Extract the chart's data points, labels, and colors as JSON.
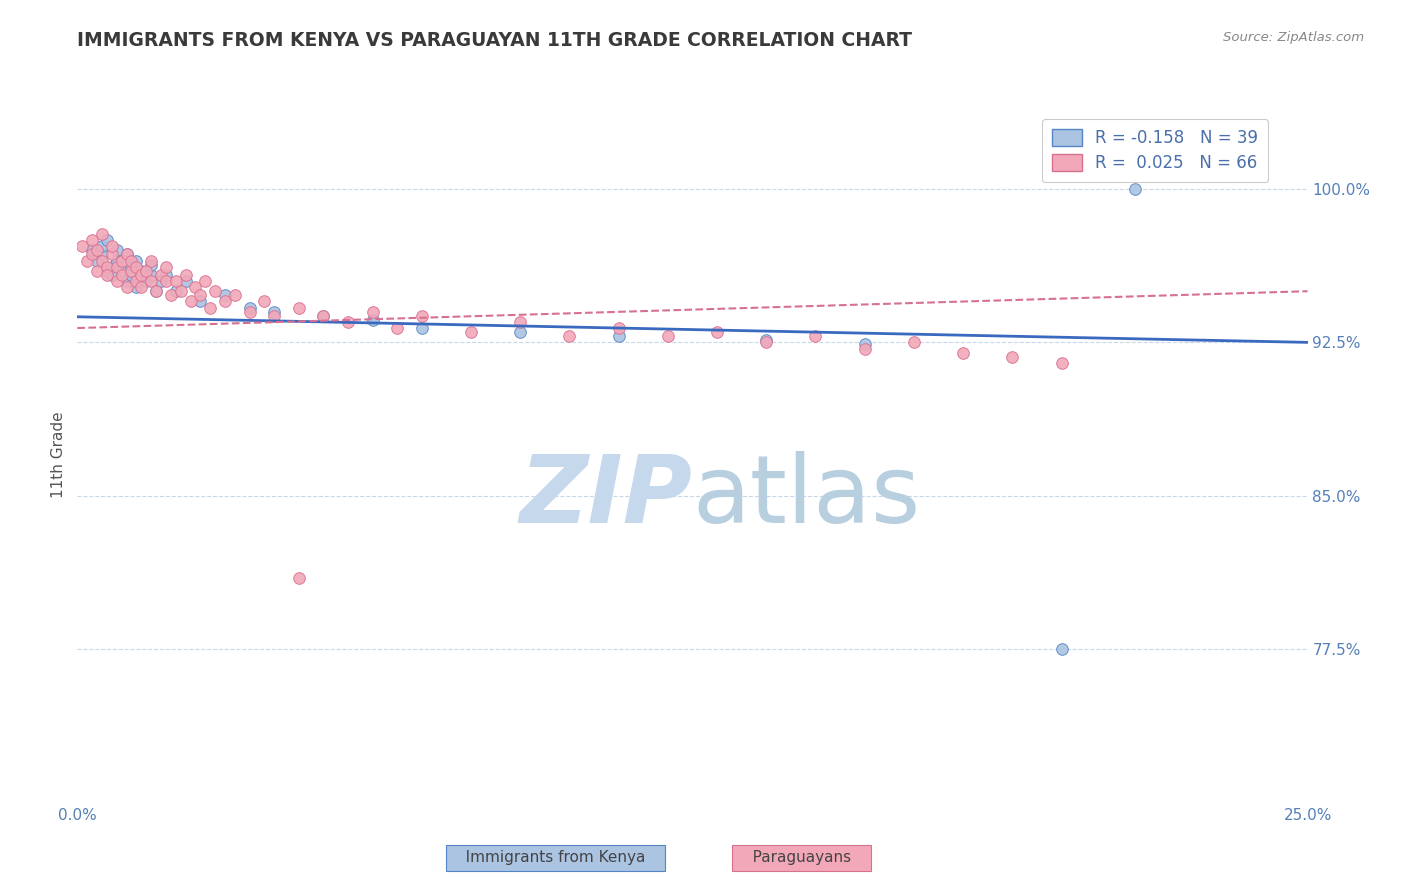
{
  "title": "IMMIGRANTS FROM KENYA VS PARAGUAYAN 11TH GRADE CORRELATION CHART",
  "source_text": "Source: ZipAtlas.com",
  "ylabel": "11th Grade",
  "xlim": [
    0.0,
    0.25
  ],
  "ylim": [
    0.7,
    1.04
  ],
  "yticks": [
    0.775,
    0.85,
    0.925,
    1.0
  ],
  "ytick_labels": [
    "77.5%",
    "85.0%",
    "92.5%",
    "100.0%"
  ],
  "xtick_positions": [
    0.0,
    0.05,
    0.1,
    0.15,
    0.2,
    0.25
  ],
  "xtick_labels": [
    "0.0%",
    "",
    "",
    "",
    "",
    "25.0%"
  ],
  "legend1_R": "-0.158",
  "legend1_N": "39",
  "legend2_R": "0.025",
  "legend2_N": "66",
  "scatter_blue_color": "#aac4e2",
  "scatter_pink_color": "#f2a8b8",
  "scatter_blue_edge": "#5585c5",
  "scatter_pink_edge": "#d87090",
  "trend_blue_color": "#3a6abf",
  "trend_pink_color": "#d87090",
  "label_blue": "Immigrants from Kenya",
  "label_pink": "Paraguayans",
  "watermark_zip_color": "#c5d8ec",
  "watermark_atlas_color": "#b8cfe0",
  "grid_color": "#c8d8e8",
  "title_color": "#3a3a3a",
  "axis_label_color": "#4a6faa",
  "tick_label_color": "#5580b8",
  "blue_x": [
    0.003,
    0.004,
    0.005,
    0.005,
    0.006,
    0.006,
    0.007,
    0.007,
    0.008,
    0.008,
    0.009,
    0.01,
    0.01,
    0.011,
    0.011,
    0.012,
    0.012,
    0.013,
    0.014,
    0.015,
    0.015,
    0.016,
    0.017,
    0.018,
    0.02,
    0.022,
    0.025,
    0.03,
    0.035,
    0.04,
    0.05,
    0.06,
    0.07,
    0.09,
    0.11,
    0.14,
    0.16,
    0.215,
    0.2
  ],
  "blue_y": [
    0.97,
    0.965,
    0.968,
    0.972,
    0.96,
    0.975,
    0.962,
    0.958,
    0.965,
    0.97,
    0.96,
    0.955,
    0.968,
    0.962,
    0.958,
    0.952,
    0.965,
    0.96,
    0.955,
    0.958,
    0.963,
    0.95,
    0.955,
    0.958,
    0.95,
    0.955,
    0.945,
    0.948,
    0.942,
    0.94,
    0.938,
    0.936,
    0.932,
    0.93,
    0.928,
    0.926,
    0.924,
    1.0,
    0.775
  ],
  "pink_x": [
    0.001,
    0.002,
    0.003,
    0.003,
    0.004,
    0.004,
    0.005,
    0.005,
    0.006,
    0.006,
    0.007,
    0.007,
    0.008,
    0.008,
    0.009,
    0.009,
    0.01,
    0.01,
    0.011,
    0.011,
    0.012,
    0.012,
    0.013,
    0.013,
    0.014,
    0.015,
    0.015,
    0.016,
    0.017,
    0.018,
    0.018,
    0.019,
    0.02,
    0.021,
    0.022,
    0.023,
    0.024,
    0.025,
    0.026,
    0.027,
    0.028,
    0.03,
    0.032,
    0.035,
    0.038,
    0.04,
    0.045,
    0.05,
    0.055,
    0.06,
    0.065,
    0.07,
    0.08,
    0.09,
    0.1,
    0.11,
    0.12,
    0.13,
    0.14,
    0.15,
    0.16,
    0.17,
    0.18,
    0.19,
    0.2,
    0.045
  ],
  "pink_y": [
    0.972,
    0.965,
    0.968,
    0.975,
    0.96,
    0.97,
    0.965,
    0.978,
    0.962,
    0.958,
    0.968,
    0.972,
    0.955,
    0.962,
    0.965,
    0.958,
    0.952,
    0.968,
    0.96,
    0.965,
    0.955,
    0.962,
    0.958,
    0.952,
    0.96,
    0.955,
    0.965,
    0.95,
    0.958,
    0.955,
    0.962,
    0.948,
    0.955,
    0.95,
    0.958,
    0.945,
    0.952,
    0.948,
    0.955,
    0.942,
    0.95,
    0.945,
    0.948,
    0.94,
    0.945,
    0.938,
    0.942,
    0.938,
    0.935,
    0.94,
    0.932,
    0.938,
    0.93,
    0.935,
    0.928,
    0.932,
    0.928,
    0.93,
    0.925,
    0.928,
    0.922,
    0.925,
    0.92,
    0.918,
    0.915,
    0.81
  ],
  "blue_trend_x": [
    0.0,
    0.25
  ],
  "blue_trend_y": [
    0.9375,
    0.925
  ],
  "pink_trend_x": [
    0.0,
    0.25
  ],
  "pink_trend_y": [
    0.932,
    0.95
  ]
}
